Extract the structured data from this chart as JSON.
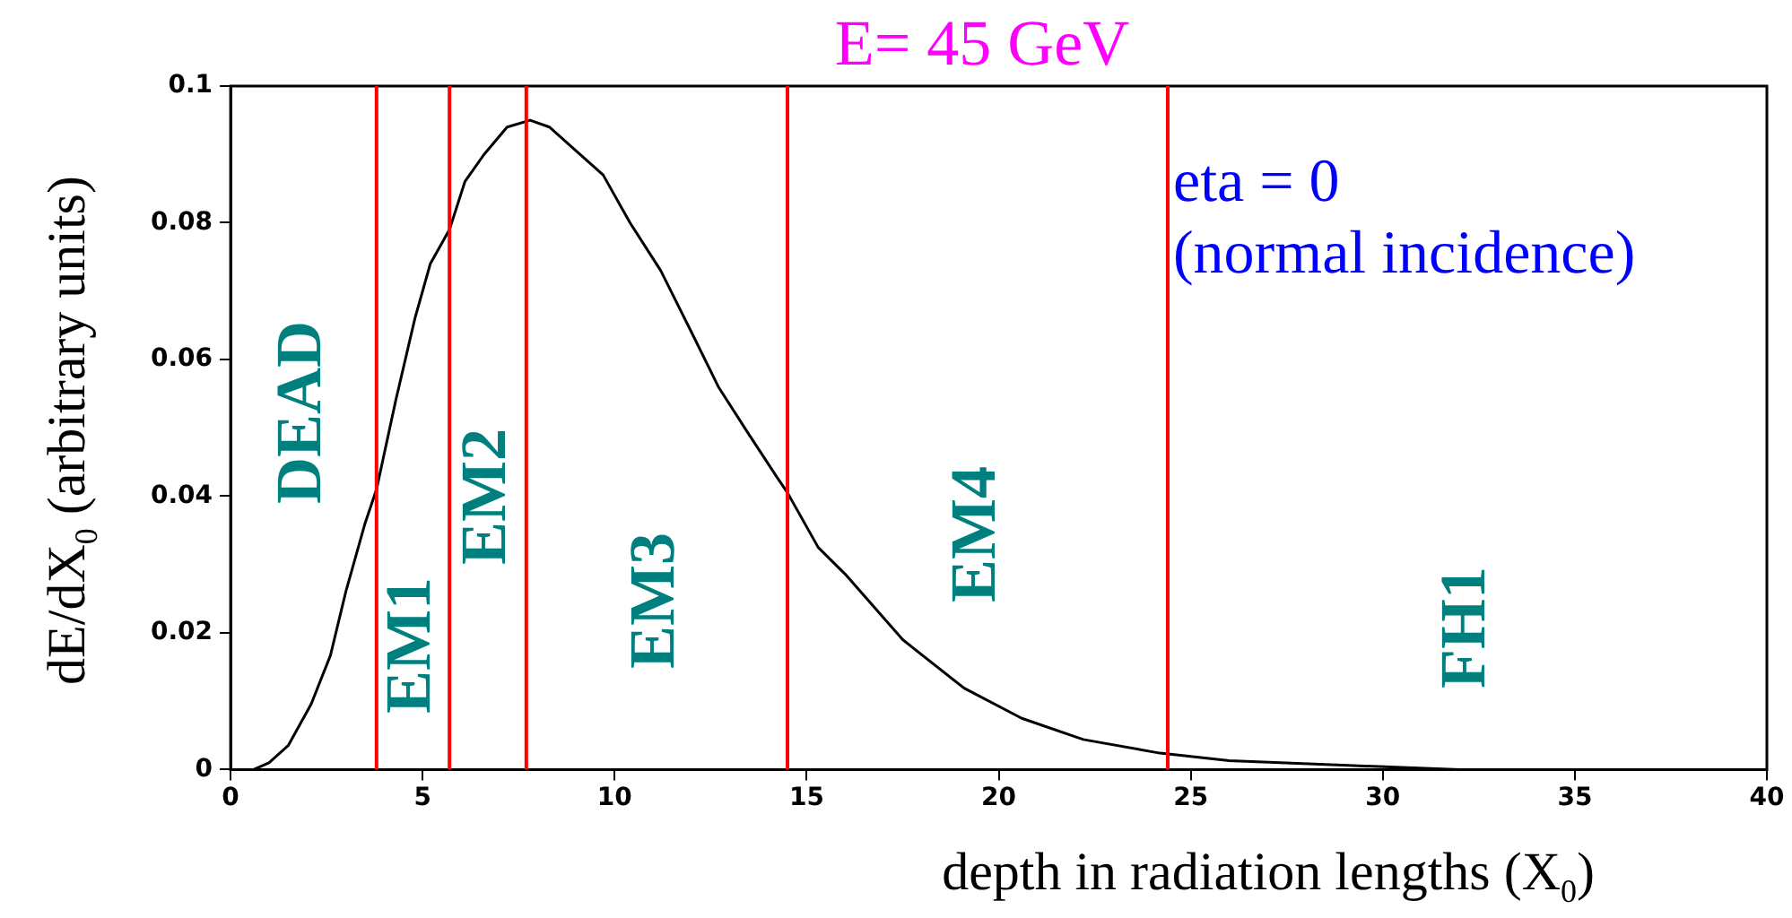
{
  "chart_data": {
    "type": "line",
    "title": "E= 45 GeV",
    "xlabel": "depth in radiation lengths (X$_{0}$)",
    "ylabel": "dE/dX$_{0}$ (arbitrary units)",
    "x": [
      0,
      0.6,
      1.0,
      1.5,
      2.1,
      2.6,
      3.0,
      3.5,
      3.8,
      4.3,
      4.8,
      5.2,
      5.7,
      6.1,
      6.6,
      7.2,
      7.8,
      8.3,
      8.9,
      9.7,
      10.4,
      11.2,
      12.0,
      12.7,
      13.5,
      14.2,
      14.5,
      15.3,
      16.0,
      17.5,
      19.1,
      20.6,
      22.2,
      24.2,
      26.0,
      29.1,
      32.0,
      40
    ],
    "series": [
      {
        "color": "#000000",
        "values": [
          0,
          0,
          0.001,
          0.0035,
          0.0096,
          0.0167,
          0.026,
          0.036,
          0.041,
          0.054,
          0.066,
          0.074,
          0.079,
          0.086,
          0.09,
          0.094,
          0.095,
          0.094,
          0.091,
          0.087,
          0.08,
          0.073,
          0.064,
          0.056,
          0.049,
          0.043,
          0.0405,
          0.0325,
          0.0286,
          0.019,
          0.0119,
          0.0075,
          0.0044,
          0.0024,
          0.0013,
          0.0006,
          0,
          0
        ]
      }
    ],
    "xlim": [
      0,
      40
    ],
    "xticks": [
      0,
      5,
      10,
      15,
      20,
      25,
      30,
      35,
      40
    ],
    "ylim": [
      0,
      0.1
    ],
    "yticks": [
      0,
      0.02,
      0.04,
      0.06,
      0.08,
      0.1
    ],
    "ref_lines": [
      {
        "axis": "x",
        "value": 3.8,
        "color": "#ff0000"
      },
      {
        "axis": "x",
        "value": 5.7,
        "color": "#ff0000"
      },
      {
        "axis": "x",
        "value": 7.7,
        "color": "#ff0000"
      },
      {
        "axis": "x",
        "value": 14.5,
        "color": "#ff0000"
      },
      {
        "axis": "x",
        "value": 24.4,
        "color": "#ff0000"
      }
    ],
    "annotations": [
      "DEAD",
      "EM1",
      "EM2",
      "EM3",
      "EM4",
      "FH1",
      "eta = 0\n(normal incidence)"
    ],
    "grid": false,
    "legend": false,
    "marker": "none",
    "line_style": "solid"
  }
}
